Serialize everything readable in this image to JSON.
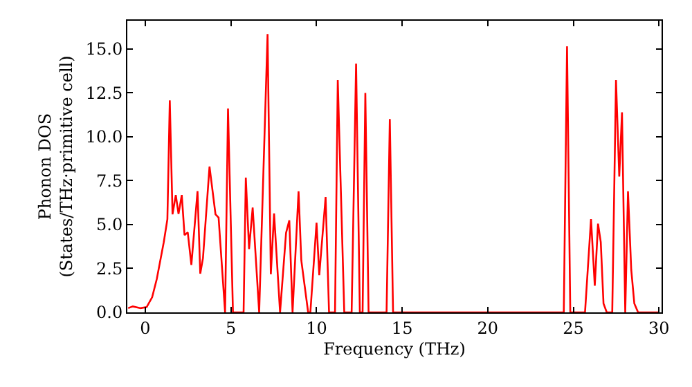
{
  "chart_data": {
    "type": "line",
    "xlabel": "Frequency (THz)",
    "ylabel": "Phonon DOS\n(States/THz·primitive cell)",
    "xlim": [
      -1.05,
      30.15
    ],
    "xticks": [
      0,
      5,
      10,
      15,
      20,
      25,
      30
    ],
    "ylim": [
      0,
      16.6
    ],
    "yticks": [
      {
        "value": 0,
        "label": "0.0"
      },
      {
        "value": 2.5,
        "label": "2.5"
      },
      {
        "value": 5,
        "label": "5.0"
      },
      {
        "value": 7.5,
        "label": "7.5"
      },
      {
        "value": 10,
        "label": "10.0"
      },
      {
        "value": 12.5,
        "label": "12.5"
      },
      {
        "value": 15,
        "label": "15.0"
      }
    ],
    "marker": "none",
    "line_style": "solid",
    "series": [
      {
        "color": "#ff0000",
        "x": [
          -1.0,
          -0.73,
          -0.27,
          0.08,
          0.4,
          0.67,
          1.08,
          1.29,
          1.43,
          1.59,
          1.78,
          1.94,
          2.13,
          2.29,
          2.48,
          2.69,
          3.05,
          3.21,
          3.37,
          3.75,
          4.1,
          4.28,
          4.66,
          4.83,
          5.12,
          5.74,
          5.87,
          6.06,
          6.27,
          6.65,
          7.14,
          7.33,
          7.52,
          7.87,
          8.22,
          8.41,
          8.6,
          8.95,
          9.11,
          9.51,
          9.64,
          10.0,
          10.16,
          10.53,
          10.73,
          11.08,
          11.24,
          11.62,
          12.05,
          12.31,
          12.53,
          12.69,
          12.85,
          13.04,
          14.09,
          14.28,
          14.47,
          24.44,
          24.63,
          24.82,
          25.68,
          26.03,
          26.25,
          26.44,
          26.6,
          26.76,
          26.95,
          27.27,
          27.49,
          27.68,
          27.84,
          28.03,
          28.19,
          28.38,
          28.56,
          28.78,
          30.0
        ],
        "values": [
          0.24,
          0.34,
          0.24,
          0.3,
          0.86,
          1.9,
          4.0,
          5.3,
          12.07,
          5.58,
          6.68,
          5.6,
          6.68,
          4.4,
          4.55,
          2.7,
          6.9,
          2.2,
          3.1,
          8.3,
          5.58,
          5.4,
          0,
          11.6,
          0,
          0,
          7.67,
          3.6,
          5.97,
          0,
          15.84,
          2.17,
          5.63,
          0,
          4.53,
          5.24,
          0,
          6.89,
          2.96,
          0,
          0,
          5.1,
          2.12,
          6.57,
          0,
          0,
          13.22,
          0,
          0,
          14.16,
          0,
          0,
          12.49,
          0,
          0,
          11.0,
          0,
          0,
          15.14,
          0,
          0,
          5.31,
          1.52,
          5.05,
          4.0,
          0.5,
          0,
          0,
          13.22,
          7.73,
          11.39,
          0,
          6.89,
          2.43,
          0.5,
          0,
          0
        ]
      }
    ]
  }
}
